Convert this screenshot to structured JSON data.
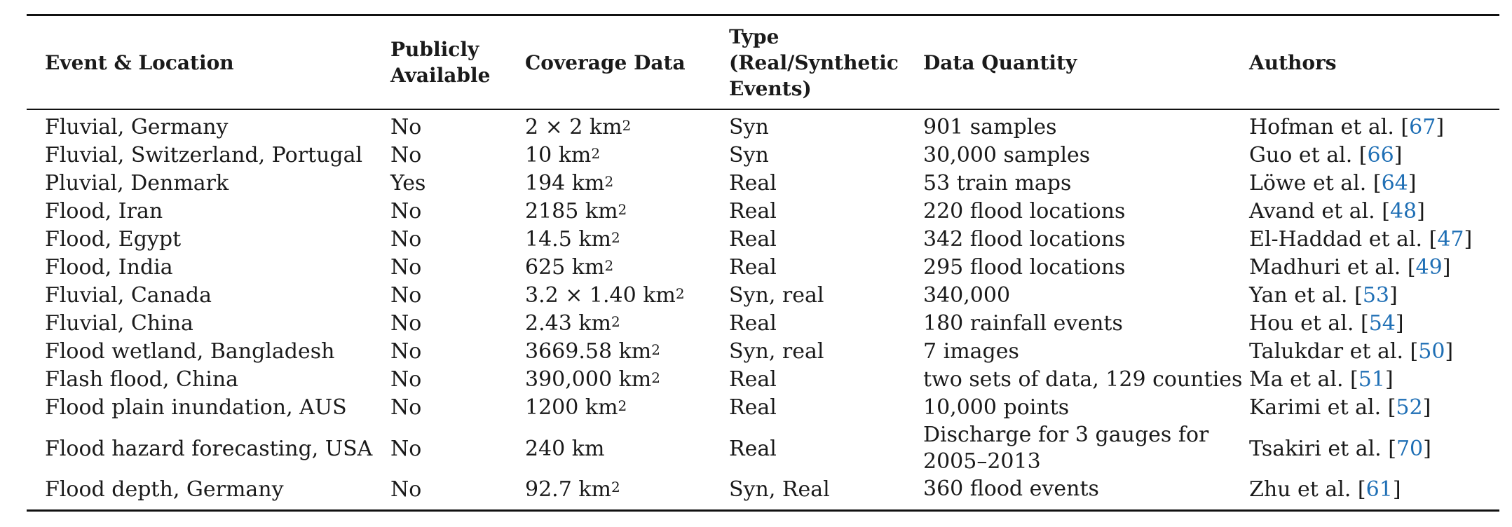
{
  "table": {
    "headers": {
      "event_location": "Event & Location",
      "publicly_available": [
        "Publicly",
        "Available"
      ],
      "coverage_data": "Coverage Data",
      "type": [
        "Type",
        "(Real/Synthetic",
        "Events)"
      ],
      "data_quantity": "Data Quantity",
      "authors": "Authors"
    },
    "rows": [
      {
        "event": "Fluvial, Germany",
        "public": "No",
        "coverage": "2 × 2 km",
        "coverage_sup": "2",
        "type": "Syn",
        "quantity": [
          "901 samples"
        ],
        "author": "Hofman et al. [",
        "ref": "67",
        "close": "]"
      },
      {
        "event": "Fluvial, Switzerland, Portugal",
        "public": "No",
        "coverage": "10 km",
        "coverage_sup": "2",
        "type": "Syn",
        "quantity": [
          "30,000 samples"
        ],
        "author": "Guo et al. [",
        "ref": "66",
        "close": "]"
      },
      {
        "event": "Pluvial, Denmark",
        "public": "Yes",
        "coverage": "194 km",
        "coverage_sup": "2",
        "type": "Real",
        "quantity": [
          "53 train maps"
        ],
        "author": "Löwe et al. [",
        "ref": "64",
        "close": "]"
      },
      {
        "event": "Flood, Iran",
        "public": "No",
        "coverage": "2185 km",
        "coverage_sup": "2",
        "type": "Real",
        "quantity": [
          "220 flood locations"
        ],
        "author": "Avand et al. [",
        "ref": "48",
        "close": "]"
      },
      {
        "event": "Flood, Egypt",
        "public": "No",
        "coverage": "14.5 km",
        "coverage_sup": "2",
        "type": "Real",
        "quantity": [
          "342 flood locations"
        ],
        "author": "El-Haddad et al. [",
        "ref": "47",
        "close": "]"
      },
      {
        "event": "Flood, India",
        "public": "No",
        "coverage": "625 km",
        "coverage_sup": "2",
        "type": "Real",
        "quantity": [
          "295 flood locations"
        ],
        "author": "Madhuri et al. [",
        "ref": "49",
        "close": "]"
      },
      {
        "event": "Fluvial, Canada",
        "public": "No",
        "coverage": "3.2 × 1.40 km",
        "coverage_sup": "2",
        "type": "Syn, real",
        "quantity": [
          "340,000"
        ],
        "author": "Yan et al. [",
        "ref": "53",
        "close": "]"
      },
      {
        "event": "Fluvial, China",
        "public": "No",
        "coverage": "2.43 km",
        "coverage_sup": "2",
        "type": "Real",
        "quantity": [
          "180 rainfall events"
        ],
        "author": "Hou et al. [",
        "ref": "54",
        "close": "]"
      },
      {
        "event": "Flood wetland, Bangladesh",
        "public": "No",
        "coverage": "3669.58 km",
        "coverage_sup": "2",
        "type": "Syn, real",
        "quantity": [
          "7 images"
        ],
        "author": "Talukdar et al. [",
        "ref": "50",
        "close": "]"
      },
      {
        "event": "Flash flood, China",
        "public": "No",
        "coverage": "390,000 km",
        "coverage_sup": "2",
        "type": "Real",
        "quantity": [
          "two sets of data, 129 counties"
        ],
        "author": "Ma et al. [",
        "ref": "51",
        "close": "]"
      },
      {
        "event": "Flood plain inundation, AUS",
        "public": "No",
        "coverage": "1200 km",
        "coverage_sup": "2",
        "type": "Real",
        "quantity": [
          "10,000 points"
        ],
        "author": "Karimi et al. [",
        "ref": "52",
        "close": "]"
      },
      {
        "event": "Flood hazard forecasting, USA",
        "public": "No",
        "coverage": "240 km",
        "coverage_sup": "",
        "type": "Real",
        "quantity": [
          "Discharge for 3 gauges for",
          "2005–2013"
        ],
        "author": "Tsakiri et al. [",
        "ref": "70",
        "close": "]"
      },
      {
        "event": "Flood depth, Germany",
        "public": "No",
        "coverage": "92.7 km",
        "coverage_sup": "2",
        "type": "Syn, Real",
        "quantity": [
          "360 flood events"
        ],
        "author": "Zhu et al. [",
        "ref": "61",
        "close": "]"
      }
    ]
  }
}
